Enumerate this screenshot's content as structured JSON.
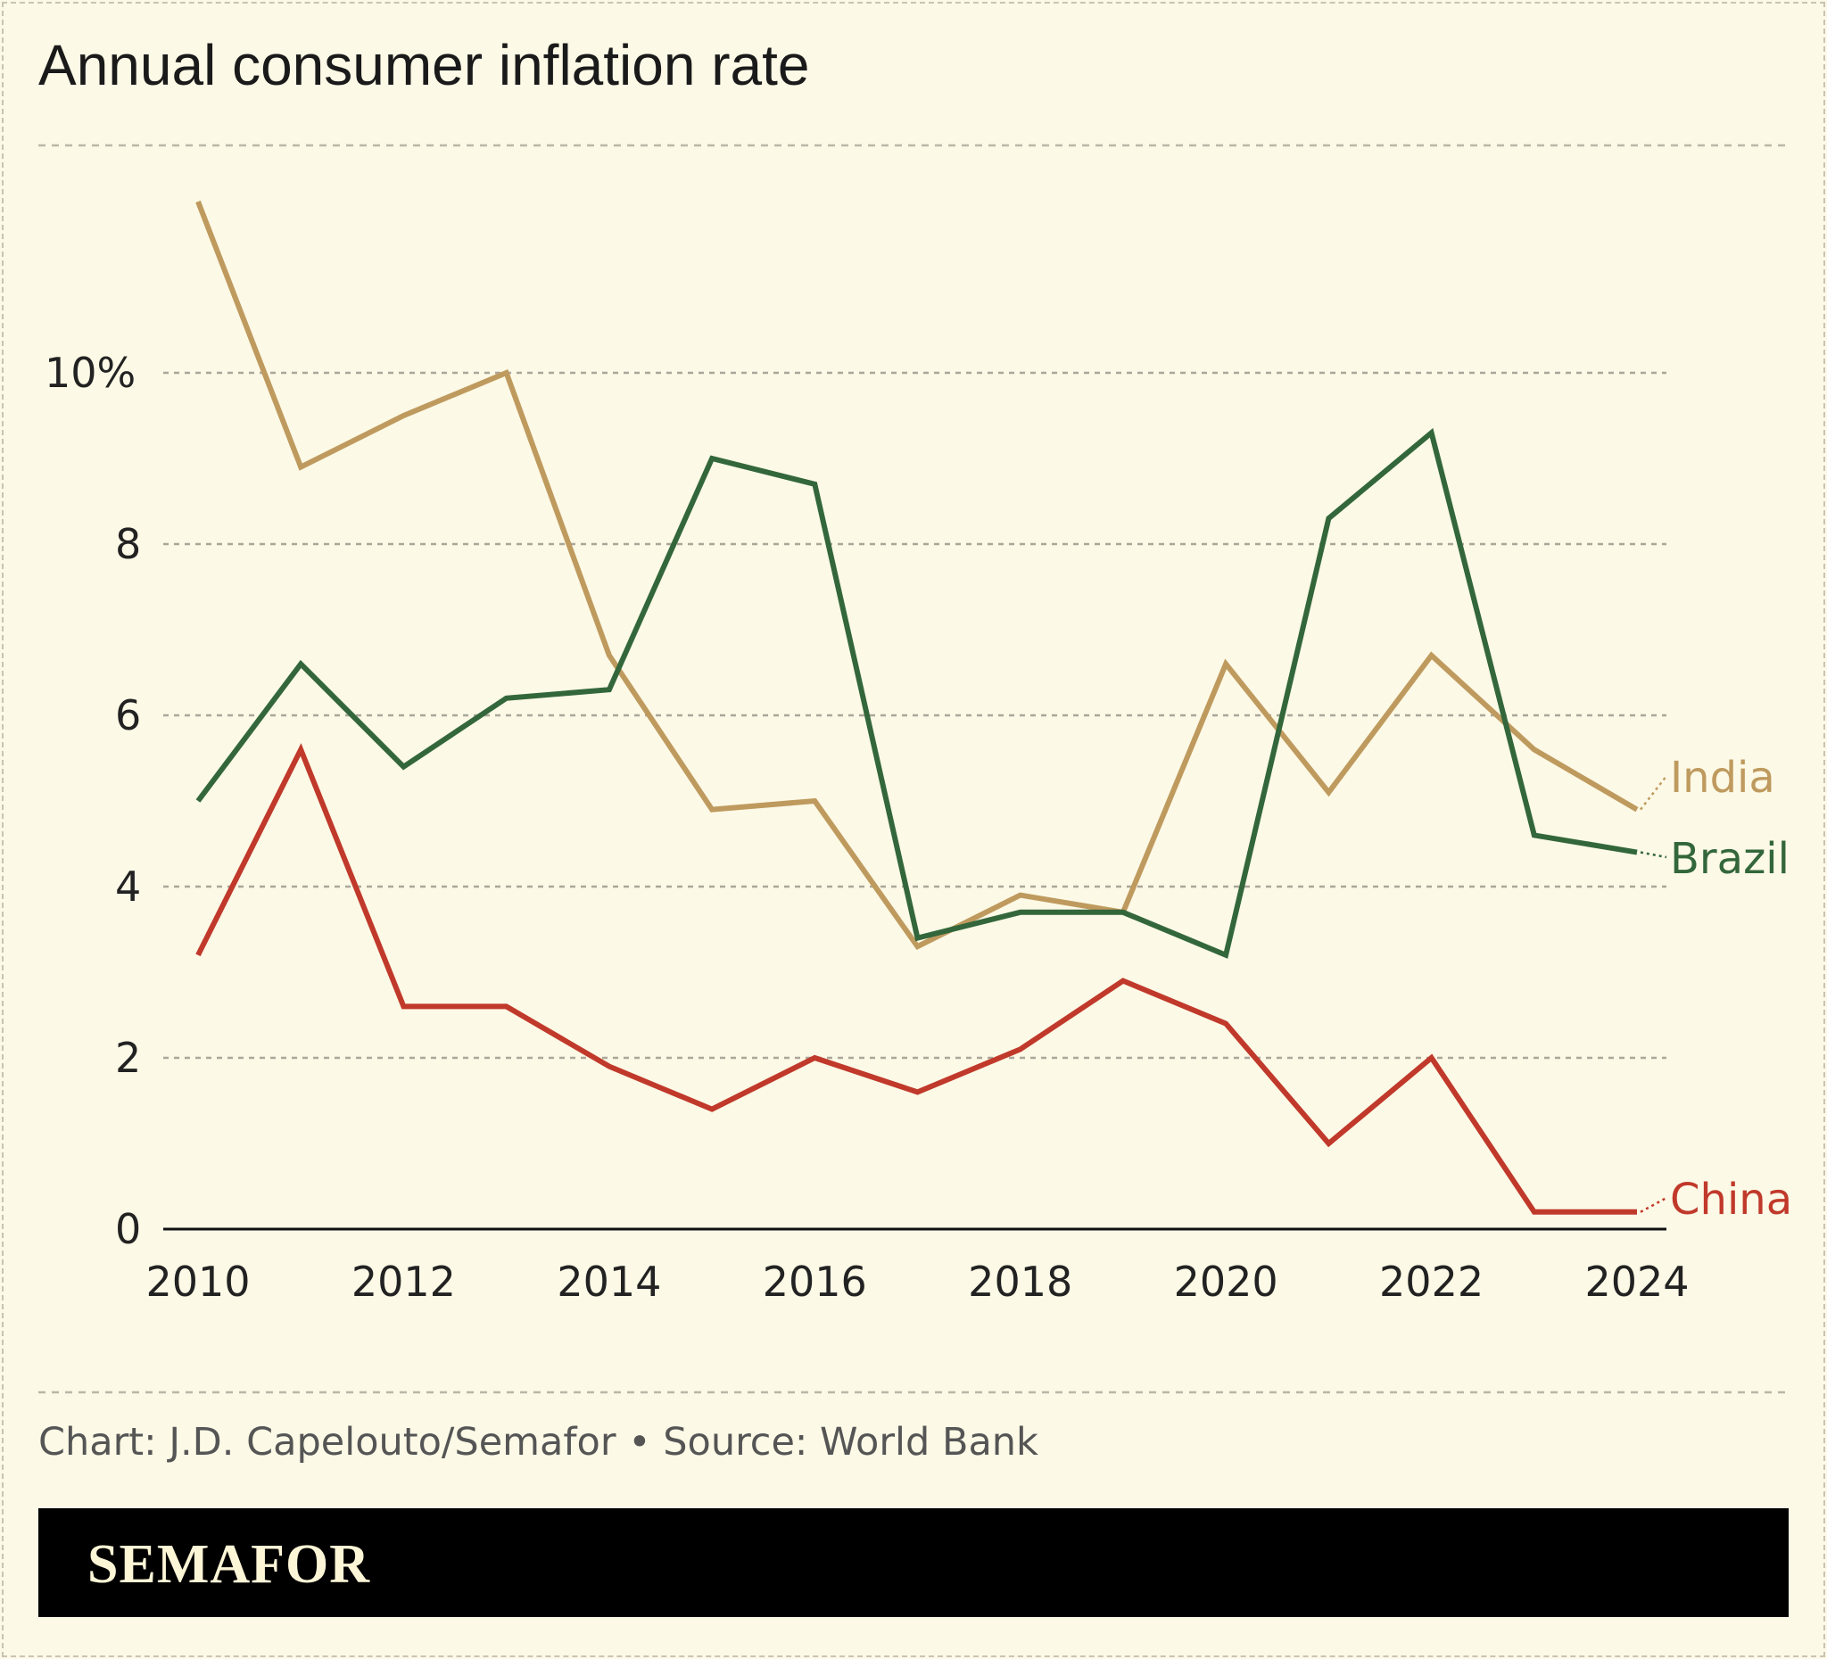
{
  "chart_data": {
    "type": "line",
    "title": "Annual consumer inflation rate",
    "x": [
      2010,
      2011,
      2012,
      2013,
      2014,
      2015,
      2016,
      2017,
      2018,
      2019,
      2020,
      2021,
      2022,
      2023,
      2024
    ],
    "x_ticks": [
      "2010",
      "2012",
      "2014",
      "2016",
      "2018",
      "2020",
      "2022",
      "2024"
    ],
    "y_ticks": [
      "0",
      "2",
      "4",
      "6",
      "8",
      "10%"
    ],
    "ylim": [
      0,
      12
    ],
    "grid": true,
    "series": [
      {
        "name": "India",
        "color": "#bf9a5e",
        "values": [
          12.0,
          8.9,
          9.5,
          10.0,
          6.7,
          4.9,
          5.0,
          3.3,
          3.9,
          3.7,
          6.6,
          5.1,
          6.7,
          5.6,
          4.9
        ]
      },
      {
        "name": "Brazil",
        "color": "#33673b",
        "values": [
          5.0,
          6.6,
          5.4,
          6.2,
          6.3,
          9.0,
          8.7,
          3.4,
          3.7,
          3.7,
          3.2,
          8.3,
          9.3,
          4.6,
          4.4
        ]
      },
      {
        "name": "China",
        "color": "#c0392b",
        "values": [
          3.2,
          5.6,
          2.6,
          2.6,
          1.9,
          1.4,
          2.0,
          1.6,
          2.1,
          2.9,
          2.4,
          1.0,
          2.0,
          0.2,
          0.2
        ]
      }
    ]
  },
  "footer": {
    "source": "Chart: J.D. Capelouto/Semafor • Source: World Bank",
    "brand": "SEMAFOR"
  }
}
